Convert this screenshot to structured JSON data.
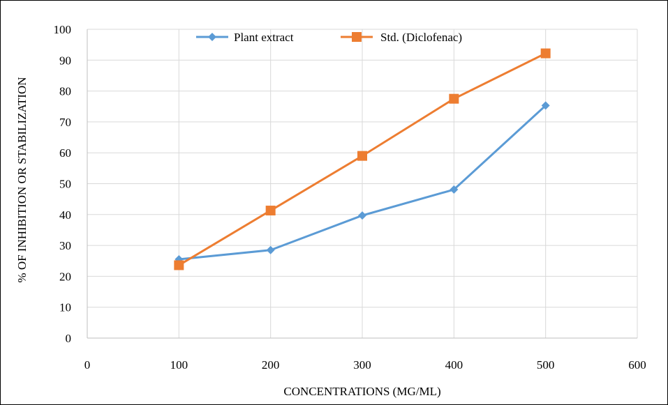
{
  "chart_data": {
    "type": "line",
    "title": "",
    "xlabel": "CONCENTRATIONS (MG/ML)",
    "ylabel": "% OF INHIBITION OR STABILIZATION",
    "x": [
      100,
      200,
      300,
      400,
      500
    ],
    "xlim": [
      0,
      600
    ],
    "ylim": [
      0,
      100
    ],
    "xticks": [
      0,
      100,
      200,
      300,
      400,
      500,
      600
    ],
    "yticks": [
      0,
      10,
      20,
      30,
      40,
      50,
      60,
      70,
      80,
      90,
      100
    ],
    "grid": true,
    "legend_position": "top",
    "series": [
      {
        "name": "Plant extract",
        "values": [
          25.5,
          28.5,
          39.7,
          48.1,
          75.3
        ],
        "color": "#5B9BD5",
        "marker": "diamond"
      },
      {
        "name": "Std. (Diclofenac)",
        "values": [
          23.6,
          41.3,
          59.0,
          77.5,
          92.2
        ],
        "color": "#ED7D31",
        "marker": "square"
      }
    ]
  }
}
